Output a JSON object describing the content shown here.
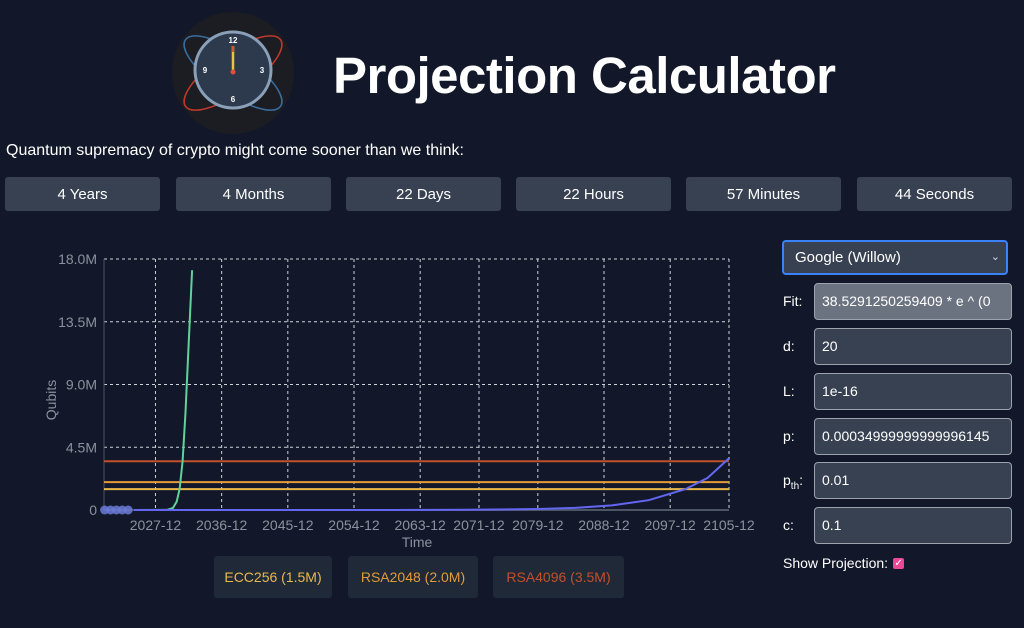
{
  "header": {
    "title": "Projection Calculator",
    "logo_icon": "clock-icon",
    "logo_numbers": [
      "12",
      "3",
      "6",
      "9"
    ]
  },
  "subtitle": "Quantum supremacy of crypto might come sooner than we think:",
  "countdown": [
    "4 Years",
    "4 Months",
    "22 Days",
    "22 Hours",
    "57 Minutes",
    "44 Seconds"
  ],
  "legend": [
    {
      "label": "ECC256 (1.5M)",
      "color": "#eab84a"
    },
    {
      "label": "RSA2048 (2.0M)",
      "color": "#e39a3a"
    },
    {
      "label": "RSA4096 (3.5M)",
      "color": "#c2502a"
    }
  ],
  "controls": {
    "model": "Google (Willow)",
    "fields": [
      {
        "label": "Fit:",
        "value": "38.5291250259409 * e ^ (0"
      },
      {
        "label": "d:",
        "value": "20"
      },
      {
        "label": "L:",
        "value": "1e-16"
      },
      {
        "label": "p:",
        "value": "0.00034999999999996145"
      },
      {
        "label": "p",
        "sub": "th",
        "value": "0.01"
      },
      {
        "label": "c:",
        "value": "0.1"
      }
    ],
    "show_projection_label": "Show Projection:",
    "show_projection": true
  },
  "chart_data": {
    "type": "line",
    "xlabel": "Time",
    "ylabel": "Qubits",
    "xlim": [
      "2020-12",
      "2105-12"
    ],
    "ylim": [
      0,
      18000000
    ],
    "xticks": [
      "2027-12",
      "2036-12",
      "2045-12",
      "2054-12",
      "2063-12",
      "2071-12",
      "2079-12",
      "2088-12",
      "2097-12",
      "2105-12"
    ],
    "yticks": [
      {
        "v": 0,
        "label": "0"
      },
      {
        "v": 4500000,
        "label": "4.5M"
      },
      {
        "v": 9000000,
        "label": "9.0M"
      },
      {
        "v": 13500000,
        "label": "13.5M"
      },
      {
        "v": 18000000,
        "label": "18.0M"
      }
    ],
    "grid": true,
    "thresholds": [
      {
        "name": "ECC256",
        "value": 1500000,
        "color": "#eab84a"
      },
      {
        "name": "RSA2048",
        "value": 2000000,
        "color": "#e39a3a"
      },
      {
        "name": "RSA4096",
        "value": 3500000,
        "color": "#c2502a"
      }
    ],
    "series": [
      {
        "color": "#6b7bd6",
        "type": "scatter",
        "points": [
          [
            2021.0,
            0
          ],
          [
            2021.8,
            0
          ],
          [
            2022.6,
            0
          ],
          [
            2023.4,
            0
          ],
          [
            2024.2,
            0
          ]
        ]
      },
      {
        "color": "#5fd39a",
        "points": [
          [
            2025,
            0
          ],
          [
            2029.5,
            10000
          ],
          [
            2030.3,
            150000
          ],
          [
            2030.8,
            600000
          ],
          [
            2031.2,
            1500000
          ],
          [
            2031.6,
            3500000
          ],
          [
            2032.0,
            7000000
          ],
          [
            2032.4,
            11500000
          ],
          [
            2032.9,
            17200000
          ]
        ]
      },
      {
        "color": "#6366f1",
        "points": [
          [
            2025,
            0
          ],
          [
            2050,
            700
          ],
          [
            2060,
            3000
          ],
          [
            2070,
            15000
          ],
          [
            2080,
            70000
          ],
          [
            2085,
            150000
          ],
          [
            2090,
            330000
          ],
          [
            2095,
            700000
          ],
          [
            2100,
            1500000
          ],
          [
            2103,
            2300000
          ],
          [
            2105.9,
            3700000
          ]
        ]
      }
    ]
  }
}
